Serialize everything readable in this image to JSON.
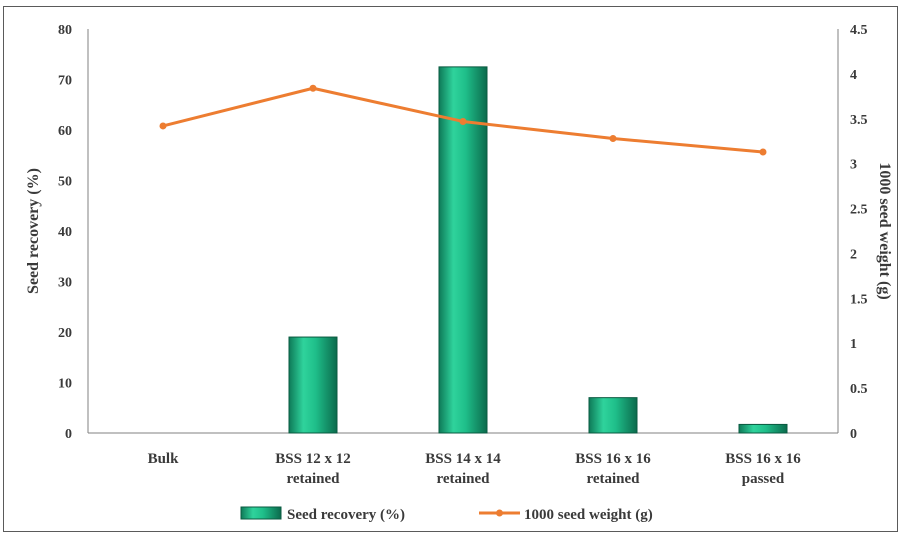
{
  "chart_data": {
    "type": "bar",
    "categories": [
      [
        "Bulk"
      ],
      [
        "BSS 12 x 12",
        "retained"
      ],
      [
        "BSS 14 x 14",
        "retained"
      ],
      [
        "BSS 16 x 16",
        "retained"
      ],
      [
        "BSS 16 x 16",
        "passed"
      ]
    ],
    "series": [
      {
        "name": "Seed recovery (%)",
        "type": "bar",
        "axis": "left",
        "color": "#1fbf8a",
        "values": [
          0,
          19,
          72.5,
          7,
          1.7
        ]
      },
      {
        "name": "1000 seed weight (g)",
        "type": "line",
        "axis": "right",
        "color": "#ed7d31",
        "values": [
          3.42,
          3.84,
          3.47,
          3.28,
          3.13
        ]
      }
    ],
    "ylabel": "Seed recovery (%)",
    "ylabel_right": "1000 seed weight (g)",
    "ylim": [
      0,
      80
    ],
    "ylim_right": [
      0,
      4.5
    ],
    "yticks": [
      "0",
      "10",
      "20",
      "30",
      "40",
      "50",
      "60",
      "70",
      "80"
    ],
    "yticks_right": [
      "0",
      "0.5",
      "1",
      "1.5",
      "2",
      "2.5",
      "3",
      "3.5",
      "4",
      "4.5"
    ],
    "grid": false,
    "legend": "bottom"
  }
}
